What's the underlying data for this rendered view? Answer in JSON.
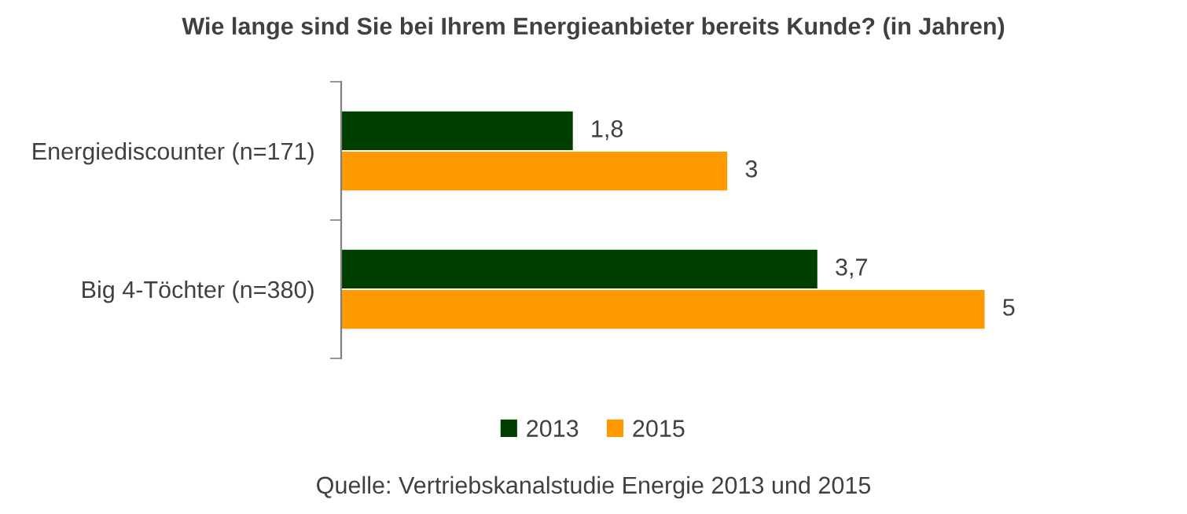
{
  "chart_data": {
    "type": "bar",
    "orientation": "horizontal",
    "title": "Wie lange sind Sie bei Ihrem Energieanbieter bereits Kunde? (in Jahren)",
    "categories": [
      "Energiediscounter (n=171)",
      "Big 4-Töchter (n=380)"
    ],
    "series": [
      {
        "name": "2013",
        "color": "#003f00",
        "values": [
          1.8,
          3.7
        ],
        "value_labels": [
          "1,8",
          "3,7"
        ]
      },
      {
        "name": "2015",
        "color": "#ff9900",
        "values": [
          3,
          5
        ],
        "value_labels": [
          "3",
          "5"
        ]
      }
    ],
    "legend": "bottom",
    "annotations": [
      "Quelle: Vertriebskanalstudie Energie 2013 und 2015"
    ]
  }
}
